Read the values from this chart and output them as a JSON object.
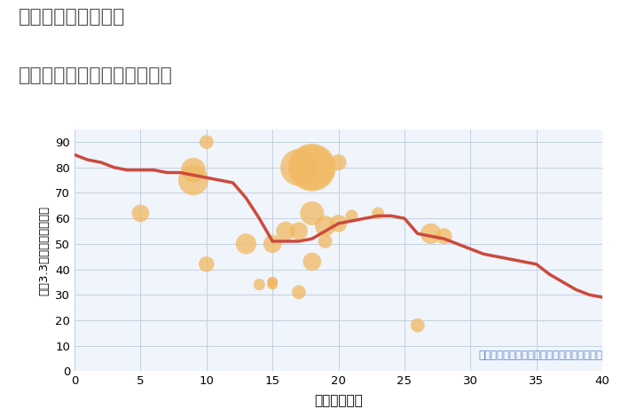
{
  "title_line1": "愛知県弥富市境町の",
  "title_line2": "築年数別中古マンション価格",
  "xlabel": "築年数（年）",
  "ylabel": "坪（3.3㎡）単価（万円）",
  "annotation": "円の大きさは、取引のあった物件面積を示す",
  "xlim": [
    0,
    40
  ],
  "ylim": [
    0,
    95
  ],
  "xticks": [
    0,
    5,
    10,
    15,
    20,
    25,
    30,
    35,
    40
  ],
  "yticks": [
    0,
    10,
    20,
    30,
    40,
    50,
    60,
    70,
    80,
    90
  ],
  "line_x": [
    0,
    1,
    2,
    3,
    4,
    5,
    6,
    7,
    8,
    9,
    10,
    11,
    12,
    13,
    14,
    15,
    16,
    17,
    18,
    19,
    20,
    21,
    22,
    23,
    24,
    25,
    26,
    27,
    28,
    29,
    30,
    31,
    32,
    33,
    34,
    35,
    36,
    37,
    38,
    39,
    40
  ],
  "line_y": [
    85,
    83,
    82,
    80,
    79,
    79,
    79,
    78,
    78,
    77,
    76,
    75,
    74,
    68,
    60,
    51,
    51,
    51,
    52,
    55,
    58,
    59,
    60,
    61,
    61,
    60,
    54,
    53,
    52,
    50,
    48,
    46,
    45,
    44,
    43,
    42,
    38,
    35,
    32,
    30,
    29
  ],
  "scatter_x": [
    5,
    9,
    9,
    10,
    10,
    13,
    14,
    15,
    15,
    15,
    15,
    16,
    17,
    17,
    17,
    18,
    18,
    18,
    18,
    19,
    19,
    20,
    20,
    21,
    23,
    26,
    27,
    28
  ],
  "scatter_y": [
    62,
    79,
    75,
    90,
    42,
    50,
    34,
    34,
    35,
    35,
    50,
    55,
    55,
    80,
    31,
    80,
    62,
    43,
    80,
    57,
    51,
    58,
    82,
    61,
    62,
    18,
    54,
    53
  ],
  "scatter_size": [
    200,
    400,
    600,
    130,
    160,
    280,
    90,
    70,
    70,
    70,
    220,
    240,
    210,
    900,
    130,
    1500,
    380,
    220,
    1300,
    280,
    130,
    200,
    170,
    100,
    100,
    130,
    280,
    170
  ],
  "scatter_color": "#f0b961",
  "scatter_alpha": 0.75,
  "line_color": "#cc4a3c",
  "line_width": 2.5,
  "bg_color": "#f0f4fb",
  "grid_color": "#c5d0e0",
  "title_color": "#555555",
  "annotation_color": "#5588cc",
  "annotation_fontsize": 8.5
}
